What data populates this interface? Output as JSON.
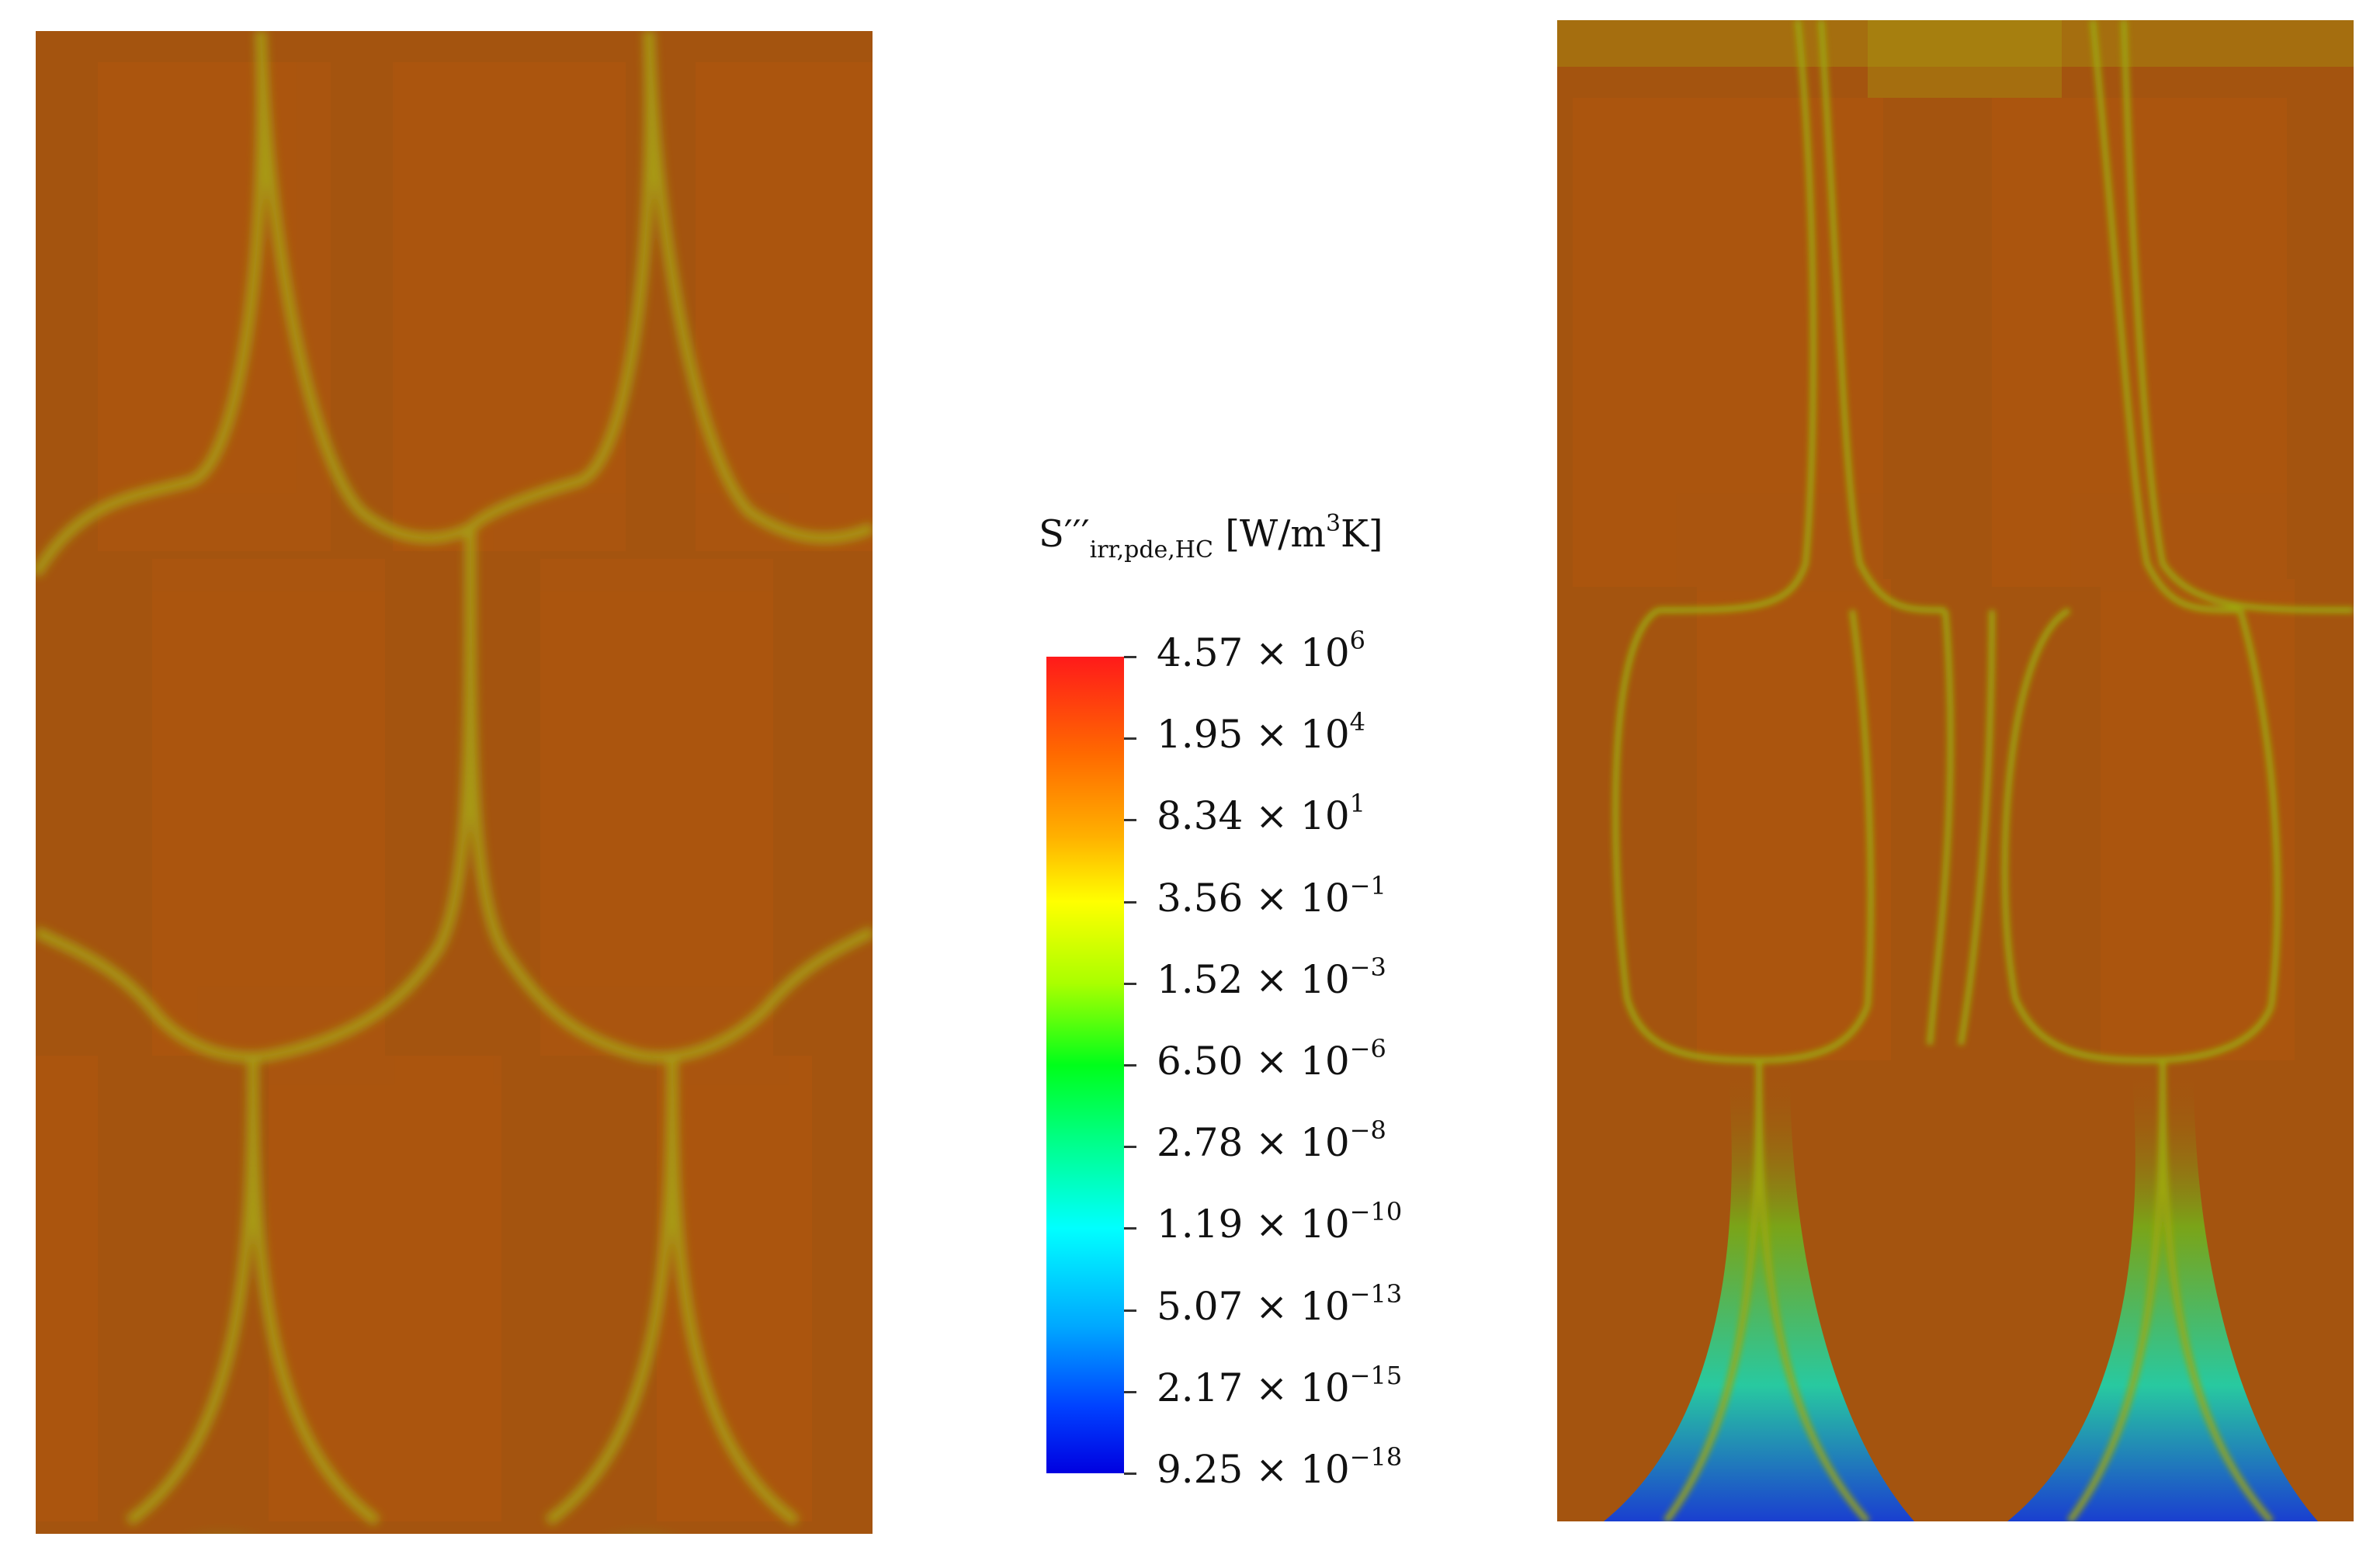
{
  "legend": {
    "symbol": "S",
    "primes": "′′′",
    "subscript": "irr,pde,HC",
    "unit_open": " [W/m",
    "unit_sup": "3",
    "unit_close": "K]"
  },
  "colorbar": {
    "ticks": [
      {
        "mantissa": "4.57",
        "exponent": "6"
      },
      {
        "mantissa": "1.95",
        "exponent": "4"
      },
      {
        "mantissa": "8.34",
        "exponent": "1"
      },
      {
        "mantissa": "3.56",
        "exponent": "−1"
      },
      {
        "mantissa": "1.52",
        "exponent": "−3"
      },
      {
        "mantissa": "6.50",
        "exponent": "−6"
      },
      {
        "mantissa": "2.78",
        "exponent": "−8"
      },
      {
        "mantissa": "1.19",
        "exponent": "−10"
      },
      {
        "mantissa": "5.07",
        "exponent": "−13"
      },
      {
        "mantissa": "2.17",
        "exponent": "−15"
      },
      {
        "mantissa": "9.25",
        "exponent": "−18"
      }
    ],
    "times": " × 10"
  },
  "colors": {
    "background_orange": "#a4540f",
    "streak_yellow": "#a8a012",
    "low_green": "#3bd320",
    "low_blue": "#1a4fd0"
  }
}
